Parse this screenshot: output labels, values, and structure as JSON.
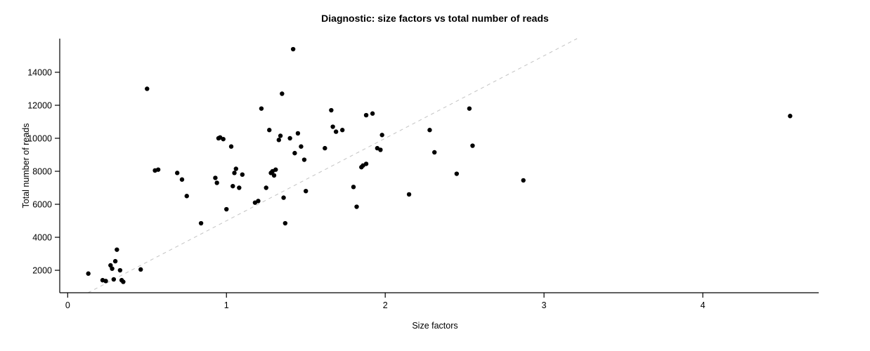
{
  "chart_data": {
    "type": "scatter",
    "title": "Diagnostic: size factors vs total number of reads",
    "xlabel": "Size factors",
    "ylabel": "Total number of reads",
    "xlim": [
      -0.05,
      4.73
    ],
    "ylim": [
      640,
      16040
    ],
    "x_ticks": [
      0,
      1,
      2,
      3,
      4
    ],
    "y_ticks": [
      2000,
      4000,
      6000,
      8000,
      10000,
      12000,
      14000
    ],
    "grid": false,
    "legend": null,
    "point_color": "#000000",
    "point_radius": 3.2,
    "reference_line": {
      "slope": 5000,
      "intercept": 0,
      "style": "dashed",
      "color": "#c3c3c3"
    },
    "points": [
      [
        0.13,
        1800
      ],
      [
        0.22,
        1400
      ],
      [
        0.24,
        1350
      ],
      [
        0.27,
        2300
      ],
      [
        0.28,
        2100
      ],
      [
        0.29,
        1450
      ],
      [
        0.3,
        2550
      ],
      [
        0.31,
        3250
      ],
      [
        0.33,
        2000
      ],
      [
        0.34,
        1400
      ],
      [
        0.35,
        1300
      ],
      [
        0.46,
        2050
      ],
      [
        0.5,
        13000
      ],
      [
        0.55,
        8050
      ],
      [
        0.57,
        8100
      ],
      [
        0.69,
        7900
      ],
      [
        0.72,
        7500
      ],
      [
        0.75,
        6500
      ],
      [
        0.84,
        4850
      ],
      [
        0.93,
        7600
      ],
      [
        0.94,
        7300
      ],
      [
        0.95,
        10000
      ],
      [
        0.96,
        10050
      ],
      [
        0.98,
        9950
      ],
      [
        1.0,
        5700
      ],
      [
        1.03,
        9500
      ],
      [
        1.04,
        7100
      ],
      [
        1.05,
        7900
      ],
      [
        1.06,
        8150
      ],
      [
        1.08,
        7000
      ],
      [
        1.1,
        7800
      ],
      [
        1.18,
        6100
      ],
      [
        1.2,
        6200
      ],
      [
        1.22,
        11800
      ],
      [
        1.25,
        7000
      ],
      [
        1.27,
        10500
      ],
      [
        1.28,
        7900
      ],
      [
        1.29,
        8000
      ],
      [
        1.3,
        7750
      ],
      [
        1.31,
        8100
      ],
      [
        1.33,
        9900
      ],
      [
        1.34,
        10150
      ],
      [
        1.35,
        12700
      ],
      [
        1.36,
        6400
      ],
      [
        1.37,
        4850
      ],
      [
        1.4,
        10000
      ],
      [
        1.42,
        15400
      ],
      [
        1.43,
        9100
      ],
      [
        1.45,
        10300
      ],
      [
        1.47,
        9500
      ],
      [
        1.49,
        8700
      ],
      [
        1.5,
        6800
      ],
      [
        1.62,
        9400
      ],
      [
        1.66,
        11700
      ],
      [
        1.67,
        10700
      ],
      [
        1.69,
        10400
      ],
      [
        1.73,
        10500
      ],
      [
        1.8,
        7050
      ],
      [
        1.82,
        5850
      ],
      [
        1.85,
        8250
      ],
      [
        1.86,
        8350
      ],
      [
        1.88,
        8450
      ],
      [
        1.88,
        11400
      ],
      [
        1.92,
        11500
      ],
      [
        1.95,
        9400
      ],
      [
        1.97,
        9300
      ],
      [
        1.98,
        10200
      ],
      [
        2.15,
        6600
      ],
      [
        2.28,
        10500
      ],
      [
        2.31,
        9150
      ],
      [
        2.45,
        7850
      ],
      [
        2.53,
        11800
      ],
      [
        2.55,
        9550
      ],
      [
        2.87,
        7450
      ],
      [
        4.55,
        11350
      ]
    ]
  }
}
